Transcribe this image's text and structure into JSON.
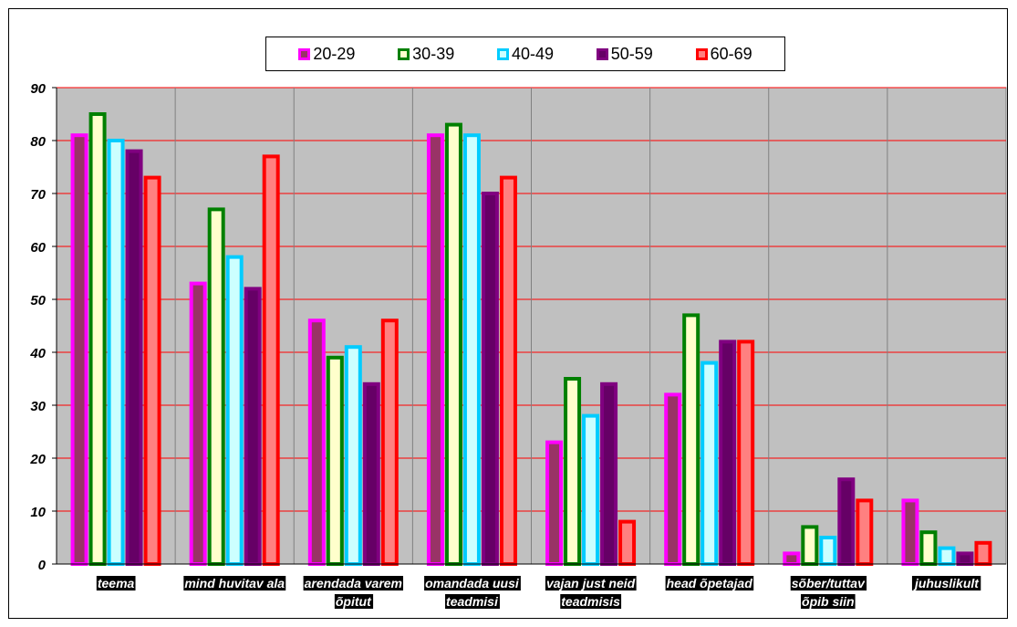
{
  "chart_data": {
    "type": "bar",
    "categories": [
      [
        "teema"
      ],
      [
        "mind huvitav ala"
      ],
      [
        "arendada varem",
        "õpitut"
      ],
      [
        "omandada uusi",
        "teadmisi"
      ],
      [
        "vajan just neid",
        "teadmisis"
      ],
      [
        "head õpetajad"
      ],
      [
        "sõber/tuttav",
        "õpib siin"
      ],
      [
        "juhuslikult"
      ]
    ],
    "series": [
      {
        "name": "20-29",
        "edge": "#ff00ff",
        "fill": "#993366",
        "values": [
          81,
          53,
          46,
          81,
          23,
          32,
          2,
          12
        ]
      },
      {
        "name": "30-39",
        "edge": "#008000",
        "fill": "#ffffcc",
        "values": [
          85,
          67,
          39,
          83,
          35,
          47,
          7,
          6
        ]
      },
      {
        "name": "40-49",
        "edge": "#00ccff",
        "fill": "#ccffff",
        "values": [
          80,
          58,
          41,
          81,
          28,
          38,
          5,
          3
        ]
      },
      {
        "name": "50-59",
        "edge": "#800080",
        "fill": "#660066",
        "values": [
          78,
          52,
          34,
          70,
          34,
          42,
          16,
          2
        ]
      },
      {
        "name": "60-69",
        "edge": "#ff0000",
        "fill": "#ff8080",
        "values": [
          73,
          77,
          46,
          73,
          8,
          42,
          12,
          4
        ]
      }
    ],
    "ylim": [
      0,
      90
    ],
    "yticks": [
      0,
      10,
      20,
      30,
      40,
      50,
      60,
      70,
      80,
      90
    ],
    "grid": true,
    "gridColor": "#ff0000",
    "plotBackground": "#c0c0c0",
    "legend": "top"
  }
}
